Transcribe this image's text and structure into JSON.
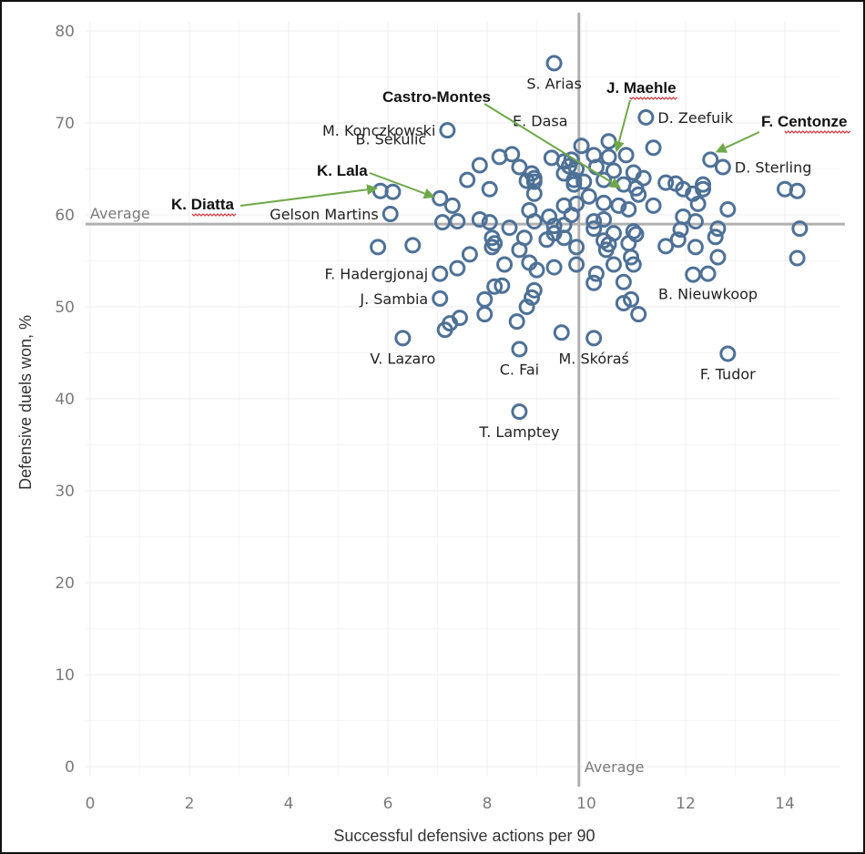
{
  "chart_data": {
    "type": "scatter",
    "title": "",
    "xlabel": "Successful defensive actions per 90",
    "ylabel": "Defensive duels won, %",
    "xlim": [
      -0.1,
      15.1
    ],
    "ylim": [
      -1,
      81
    ],
    "xticks": [
      0,
      2,
      4,
      6,
      8,
      10,
      12,
      14
    ],
    "yticks": [
      0,
      10,
      20,
      30,
      40,
      50,
      60,
      70,
      80
    ],
    "grid": true,
    "marker_color": "#4e7196",
    "average": {
      "x": 9.85,
      "y": 59.0,
      "label": "Average"
    },
    "points": [
      [
        9.35,
        76.5
      ],
      [
        7.2,
        69.2
      ],
      [
        11.2,
        70.6
      ],
      [
        10.45,
        68.0
      ],
      [
        9.9,
        67.5
      ],
      [
        11.35,
        67.3
      ],
      [
        10.15,
        66.5
      ],
      [
        10.45,
        66.3
      ],
      [
        10.8,
        66.5
      ],
      [
        12.5,
        66.0
      ],
      [
        12.75,
        65.2
      ],
      [
        8.5,
        66.6
      ],
      [
        8.25,
        66.3
      ],
      [
        9.7,
        66.0
      ],
      [
        9.55,
        65.8
      ],
      [
        9.65,
        65.3
      ],
      [
        9.3,
        66.2
      ],
      [
        8.65,
        65.2
      ],
      [
        7.85,
        65.4
      ],
      [
        9.8,
        65.0
      ],
      [
        10.2,
        65.2
      ],
      [
        10.55,
        64.8
      ],
      [
        10.95,
        64.6
      ],
      [
        11.15,
        64.0
      ],
      [
        8.9,
        64.5
      ],
      [
        8.95,
        64.0
      ],
      [
        8.8,
        63.7
      ],
      [
        8.95,
        63.6
      ],
      [
        9.55,
        64.5
      ],
      [
        9.75,
        63.8
      ],
      [
        9.75,
        63.3
      ],
      [
        9.95,
        63.6
      ],
      [
        10.35,
        63.8
      ],
      [
        10.75,
        63.3
      ],
      [
        11.0,
        62.9
      ],
      [
        11.6,
        63.5
      ],
      [
        11.8,
        63.4
      ],
      [
        11.95,
        62.8
      ],
      [
        12.35,
        63.3
      ],
      [
        12.35,
        62.8
      ],
      [
        12.15,
        62.3
      ],
      [
        7.6,
        63.8
      ],
      [
        8.05,
        62.8
      ],
      [
        8.95,
        62.3
      ],
      [
        10.05,
        62.0
      ],
      [
        11.05,
        62.2
      ],
      [
        12.25,
        61.2
      ],
      [
        5.85,
        62.6
      ],
      [
        6.1,
        62.5
      ],
      [
        7.05,
        61.8
      ],
      [
        7.3,
        61.0
      ],
      [
        9.55,
        61.0
      ],
      [
        9.8,
        61.2
      ],
      [
        10.35,
        61.3
      ],
      [
        10.65,
        61.0
      ],
      [
        10.85,
        60.6
      ],
      [
        11.35,
        61.0
      ],
      [
        12.85,
        60.6
      ],
      [
        6.05,
        60.1
      ],
      [
        8.85,
        60.5
      ],
      [
        9.25,
        59.8
      ],
      [
        9.7,
        60.0
      ],
      [
        10.15,
        59.3
      ],
      [
        10.35,
        59.5
      ],
      [
        11.95,
        59.8
      ],
      [
        12.2,
        59.3
      ],
      [
        14.0,
        62.8
      ],
      [
        14.25,
        62.6
      ],
      [
        7.1,
        59.2
      ],
      [
        7.4,
        59.3
      ],
      [
        7.85,
        59.5
      ],
      [
        8.05,
        59.2
      ],
      [
        8.45,
        58.6
      ],
      [
        8.95,
        59.3
      ],
      [
        9.35,
        58.8
      ],
      [
        9.55,
        58.9
      ],
      [
        9.35,
        58.0
      ],
      [
        10.15,
        58.5
      ],
      [
        10.55,
        58.0
      ],
      [
        10.95,
        58.2
      ],
      [
        11.0,
        57.9
      ],
      [
        11.9,
        58.4
      ],
      [
        12.65,
        58.5
      ],
      [
        14.3,
        58.5
      ],
      [
        8.1,
        57.5
      ],
      [
        8.15,
        56.9
      ],
      [
        8.75,
        57.5
      ],
      [
        9.2,
        57.3
      ],
      [
        9.55,
        57.5
      ],
      [
        10.35,
        57.2
      ],
      [
        10.45,
        56.8
      ],
      [
        10.85,
        56.9
      ],
      [
        11.85,
        57.3
      ],
      [
        12.6,
        57.6
      ],
      [
        5.8,
        56.5
      ],
      [
        6.5,
        56.7
      ],
      [
        7.65,
        55.7
      ],
      [
        8.1,
        56.5
      ],
      [
        8.65,
        56.2
      ],
      [
        9.8,
        56.5
      ],
      [
        10.4,
        56.2
      ],
      [
        10.9,
        55.4
      ],
      [
        11.6,
        56.6
      ],
      [
        12.2,
        56.5
      ],
      [
        12.65,
        55.4
      ],
      [
        14.25,
        55.3
      ],
      [
        7.4,
        54.2
      ],
      [
        8.35,
        54.6
      ],
      [
        8.85,
        54.8
      ],
      [
        9.0,
        54.0
      ],
      [
        9.35,
        54.3
      ],
      [
        9.8,
        54.6
      ],
      [
        10.2,
        53.6
      ],
      [
        10.55,
        54.6
      ],
      [
        10.95,
        54.6
      ],
      [
        12.15,
        53.5
      ],
      [
        12.45,
        53.6
      ],
      [
        7.05,
        53.6
      ],
      [
        8.15,
        52.2
      ],
      [
        8.3,
        52.3
      ],
      [
        8.95,
        51.8
      ],
      [
        8.9,
        51.0
      ],
      [
        10.15,
        52.6
      ],
      [
        10.75,
        52.7
      ],
      [
        7.05,
        50.9
      ],
      [
        7.95,
        50.8
      ],
      [
        8.8,
        50.0
      ],
      [
        10.75,
        50.4
      ],
      [
        10.9,
        50.8
      ],
      [
        11.05,
        49.2
      ],
      [
        7.45,
        48.8
      ],
      [
        7.25,
        48.2
      ],
      [
        7.95,
        49.2
      ],
      [
        7.15,
        47.5
      ],
      [
        8.6,
        48.4
      ],
      [
        9.5,
        47.2
      ],
      [
        6.3,
        46.6
      ],
      [
        10.15,
        46.6
      ],
      [
        8.65,
        45.4
      ],
      [
        12.85,
        44.9
      ],
      [
        8.65,
        38.6
      ]
    ],
    "labels": [
      {
        "name": "S. Arias",
        "x": 9.35,
        "y": 76.5,
        "pos": "below"
      },
      {
        "name": "M. Konczkowski",
        "x": 7.2,
        "y": 69.2,
        "pos": "left"
      },
      {
        "name": "E. Dasa",
        "x": 9.9,
        "y": 67.5,
        "pos": "above-left"
      },
      {
        "name": "D. Zeefuik",
        "x": 11.2,
        "y": 70.6,
        "pos": "right"
      },
      {
        "name": "B. Sekulić",
        "x": 7.05,
        "y": 65.5,
        "pos": "above-left"
      },
      {
        "name": "D. Sterling",
        "x": 12.75,
        "y": 65.2,
        "pos": "right"
      },
      {
        "name": "Gelson Martins",
        "x": 6.05,
        "y": 60.1,
        "pos": "left"
      },
      {
        "name": "F. Hadergjonaj",
        "x": 7.05,
        "y": 53.6,
        "pos": "left"
      },
      {
        "name": "J. Sambia",
        "x": 7.05,
        "y": 50.9,
        "pos": "left"
      },
      {
        "name": "V. Lazaro",
        "x": 6.3,
        "y": 46.6,
        "pos": "below"
      },
      {
        "name": "C. Fai",
        "x": 8.65,
        "y": 45.4,
        "pos": "below"
      },
      {
        "name": "M. Skóraś",
        "x": 10.15,
        "y": 46.6,
        "pos": "below"
      },
      {
        "name": "B. Nieuwkoop",
        "x": 12.45,
        "y": 53.6,
        "pos": "below"
      },
      {
        "name": "F. Tudor",
        "x": 12.85,
        "y": 44.9,
        "pos": "below"
      },
      {
        "name": "T. Lamptey",
        "x": 8.65,
        "y": 38.6,
        "pos": "below"
      }
    ],
    "highlighted": [
      {
        "name": "K. Diatta",
        "target": [
          5.8,
          62.9
        ],
        "spellcheck": true
      },
      {
        "name": "K. Lala",
        "target": [
          6.95,
          61.9
        ],
        "spellcheck": false
      },
      {
        "name": "Castro-Montes",
        "target": [
          10.7,
          62.9
        ],
        "spellcheck": false
      },
      {
        "name": "J. Maehle",
        "target": [
          10.6,
          66.8
        ],
        "spellcheck": true
      },
      {
        "name": "F. Centonze",
        "target": [
          12.6,
          66.8
        ],
        "spellcheck": true
      }
    ]
  }
}
